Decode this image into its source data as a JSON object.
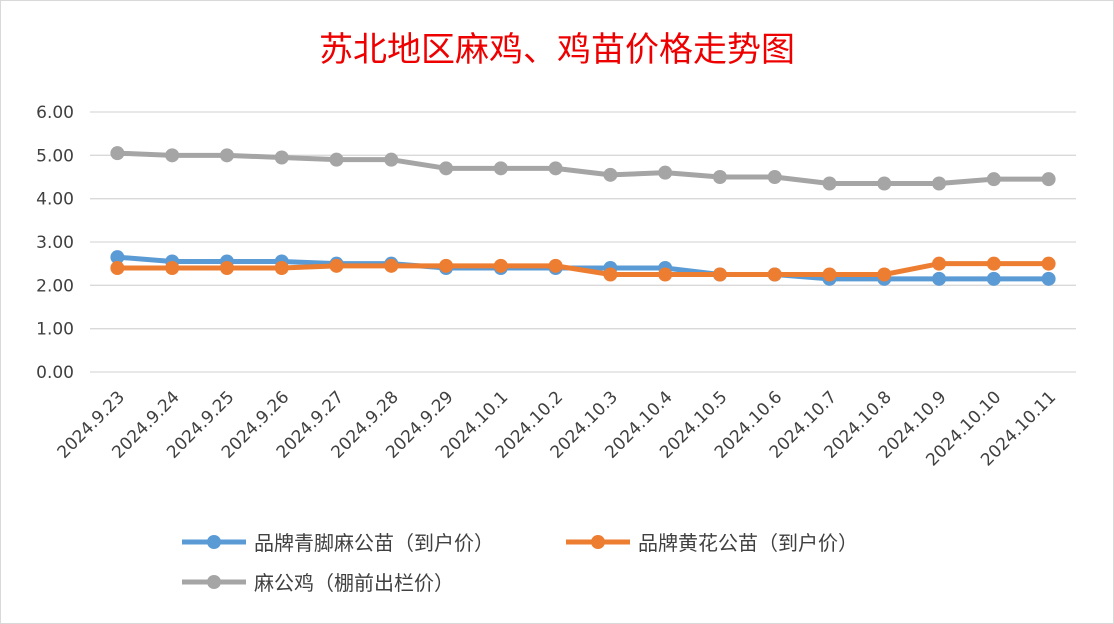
{
  "chart_data": {
    "type": "line",
    "title": "苏北地区麻鸡、鸡苗价格走势图",
    "categories": [
      "2024.9.23",
      "2024.9.24",
      "2024.9.25",
      "2024.9.26",
      "2024.9.27",
      "2024.9.28",
      "2024.9.29",
      "2024.10.1",
      "2024.10.2",
      "2024.10.3",
      "2024.10.4",
      "2024.10.5",
      "2024.10.6",
      "2024.10.7",
      "2024.10.8",
      "2024.10.9",
      "2024.10.10",
      "2024.10.11"
    ],
    "yticks": [
      "0.00",
      "1.00",
      "2.00",
      "3.00",
      "4.00",
      "5.00",
      "6.00"
    ],
    "ylim": [
      0,
      6
    ],
    "grid": true,
    "legend_position": "bottom",
    "series": [
      {
        "name": "品牌青脚麻公苗（到户价）",
        "color": "#5b9bd5",
        "values": [
          2.65,
          2.55,
          2.55,
          2.55,
          2.5,
          2.5,
          2.4,
          2.4,
          2.4,
          2.4,
          2.4,
          2.25,
          2.25,
          2.15,
          2.15,
          2.15,
          2.15,
          2.15
        ]
      },
      {
        "name": "品牌黄花公苗（到户价）",
        "color": "#ed7d31",
        "values": [
          2.4,
          2.4,
          2.4,
          2.4,
          2.45,
          2.45,
          2.45,
          2.45,
          2.45,
          2.25,
          2.25,
          2.25,
          2.25,
          2.25,
          2.25,
          2.5,
          2.5,
          2.5
        ]
      },
      {
        "name": "麻公鸡（棚前出栏价）",
        "color": "#a5a5a5",
        "values": [
          5.05,
          5.0,
          5.0,
          4.95,
          4.9,
          4.9,
          4.7,
          4.7,
          4.7,
          4.55,
          4.6,
          4.5,
          4.5,
          4.35,
          4.35,
          4.35,
          4.45,
          4.45
        ]
      }
    ]
  }
}
